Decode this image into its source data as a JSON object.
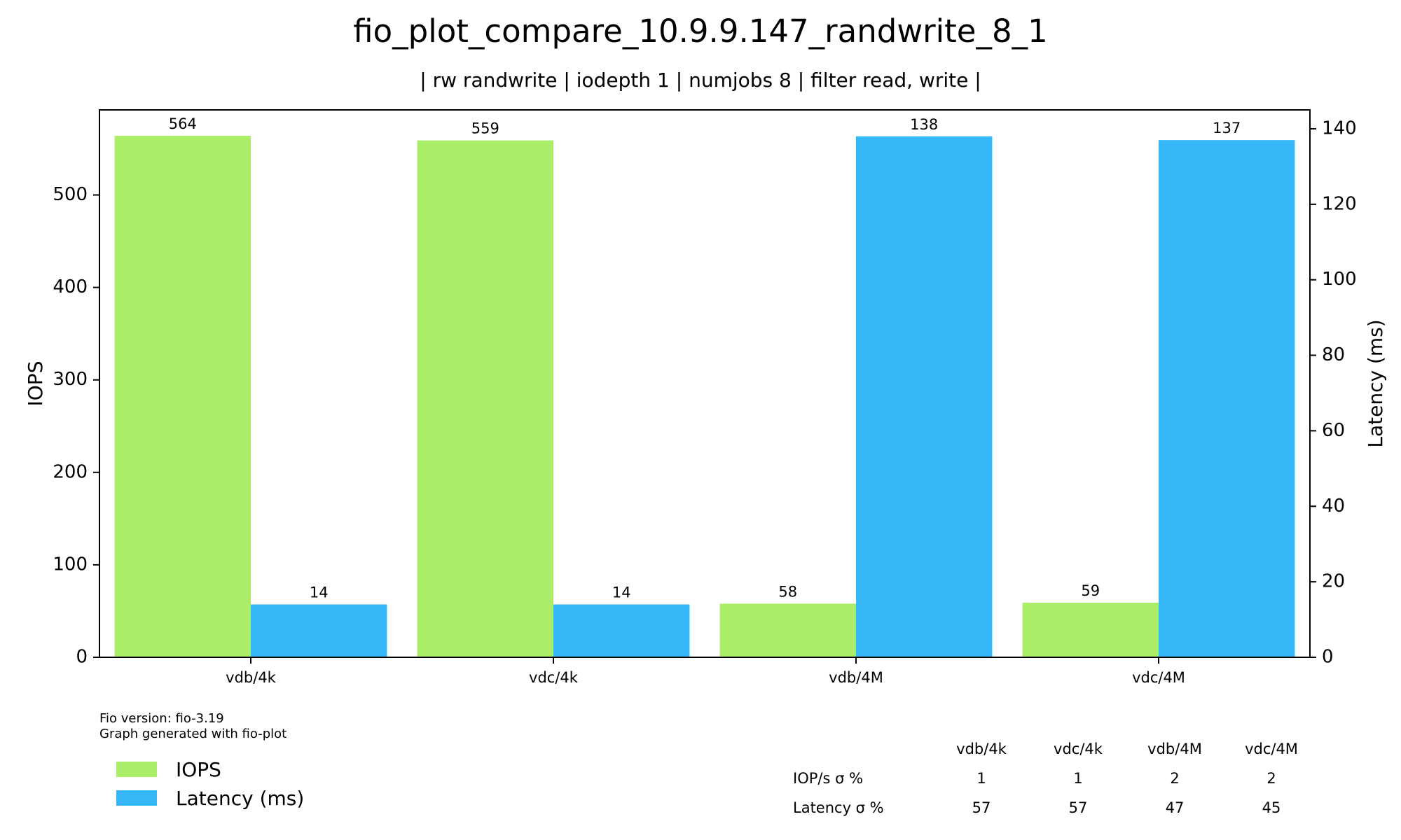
{
  "chart_data": {
    "type": "bar",
    "title": "fio_plot_compare_10.9.9.147_randwrite_8_1",
    "subtitle": "| rw randwrite | iodepth 1 | numjobs 8 | filter read, write |",
    "categories": [
      "vdb/4k",
      "vdc/4k",
      "vdb/4M",
      "vdc/4M"
    ],
    "ylabel": "IOPS",
    "y2label": "Latency (ms)",
    "ylim": [
      0,
      592
    ],
    "y2lim": [
      0,
      145
    ],
    "yticks": [
      0,
      100,
      200,
      300,
      400,
      500
    ],
    "y2ticks": [
      0,
      20,
      40,
      60,
      80,
      100,
      120,
      140
    ],
    "grid": false,
    "legend_position": "bottom-left",
    "series": [
      {
        "name": "IOPS",
        "axis": "left",
        "color": "#aaed66",
        "values": [
          564,
          559,
          58,
          59
        ],
        "labels": [
          "564",
          "559",
          "58",
          "59"
        ]
      },
      {
        "name": "Latency (ms)",
        "axis": "right",
        "color": "#36b8f8",
        "values": [
          14,
          14,
          138,
          137
        ],
        "labels": [
          "14",
          "14",
          "138",
          "137"
        ]
      }
    ]
  },
  "notes": {
    "line1": "Fio version: fio-3.19",
    "line2": "Graph generated with fio-plot"
  },
  "stats_table": {
    "headers": [
      "vdb/4k",
      "vdc/4k",
      "vdb/4M",
      "vdc/4M"
    ],
    "rows": [
      {
        "label": "IOP/s σ %",
        "values": [
          "1",
          "1",
          "2",
          "2"
        ]
      },
      {
        "label": "Latency σ %",
        "values": [
          "57",
          "57",
          "47",
          "45"
        ]
      }
    ]
  }
}
